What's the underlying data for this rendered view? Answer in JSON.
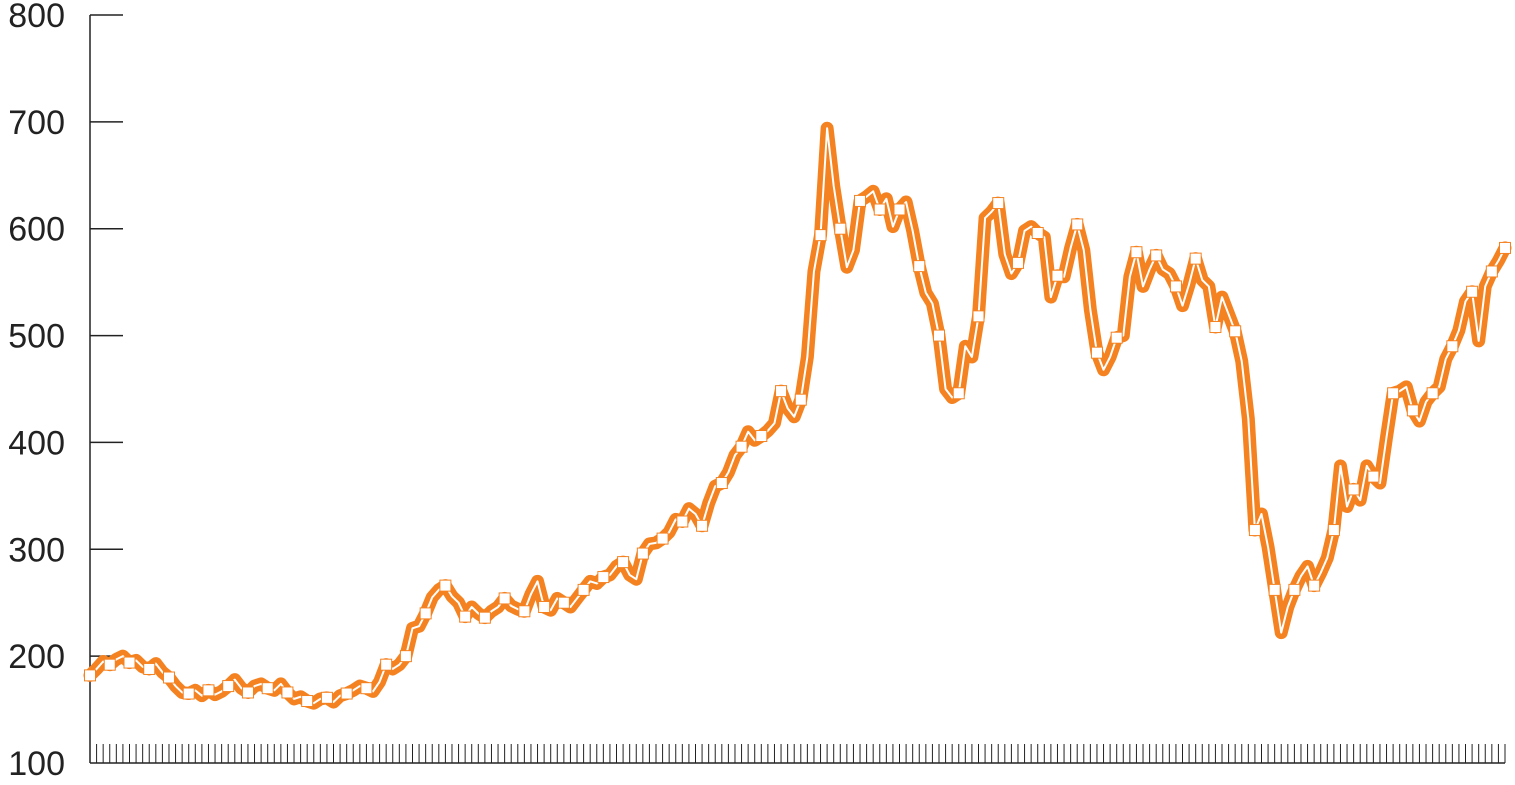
{
  "chart_data": {
    "type": "line",
    "title": "",
    "xlabel": "",
    "ylabel": "",
    "ylim": [
      100,
      800
    ],
    "yticks": [
      100,
      200,
      300,
      400,
      500,
      600,
      700,
      800
    ],
    "ytick_labels": [
      "100",
      "200",
      "300",
      "400",
      "500",
      "600",
      "700",
      "800"
    ],
    "grid": false,
    "legend": "none",
    "colors": {
      "line": "#f58220",
      "inner_line": "#ffffff",
      "marker_fill": "#ffffff",
      "axis": "#222222"
    },
    "series": [
      {
        "values": [
          182,
          188,
          195,
          192,
          197,
          200,
          194,
          196,
          190,
          188,
          193,
          185,
          180,
          172,
          166,
          165,
          168,
          163,
          168,
          164,
          167,
          172,
          178,
          170,
          166,
          172,
          174,
          170,
          168,
          174,
          166,
          160,
          162,
          158,
          156,
          160,
          161,
          157,
          163,
          165,
          168,
          172,
          170,
          167,
          176,
          192,
          188,
          192,
          200,
          226,
          228,
          240,
          255,
          262,
          266,
          256,
          250,
          237,
          246,
          240,
          236,
          242,
          246,
          254,
          247,
          244,
          242,
          258,
          270,
          246,
          243,
          254,
          250,
          246,
          254,
          262,
          270,
          268,
          274,
          276,
          284,
          288,
          276,
          272,
          296,
          305,
          306,
          310,
          316,
          328,
          326,
          338,
          333,
          322,
          343,
          359,
          362,
          372,
          388,
          396,
          410,
          402,
          406,
          411,
          418,
          448,
          432,
          424,
          440,
          480,
          560,
          594,
          694,
          640,
          600,
          564,
          580,
          626,
          630,
          635,
          618,
          628,
          602,
          618,
          625,
          598,
          565,
          540,
          530,
          500,
          450,
          442,
          446,
          490,
          480,
          518,
          610,
          616,
          624,
          576,
          558,
          568,
          598,
          602,
          596,
          592,
          536,
          556,
          555,
          582,
          604,
          580,
          524,
          484,
          468,
          480,
          498,
          500,
          555,
          578,
          546,
          562,
          575,
          562,
          558,
          546,
          528,
          548,
          572,
          552,
          546,
          508,
          536,
          520,
          504,
          476,
          422,
          318,
          333,
          302,
          262,
          222,
          246,
          262,
          275,
          284,
          266,
          278,
          292,
          318,
          378,
          340,
          356,
          346,
          378,
          368,
          362,
          405,
          446,
          448,
          452,
          430,
          420,
          438,
          446,
          452,
          478,
          490,
          505,
          532,
          541,
          495,
          546,
          560,
          570,
          582
        ]
      }
    ]
  }
}
